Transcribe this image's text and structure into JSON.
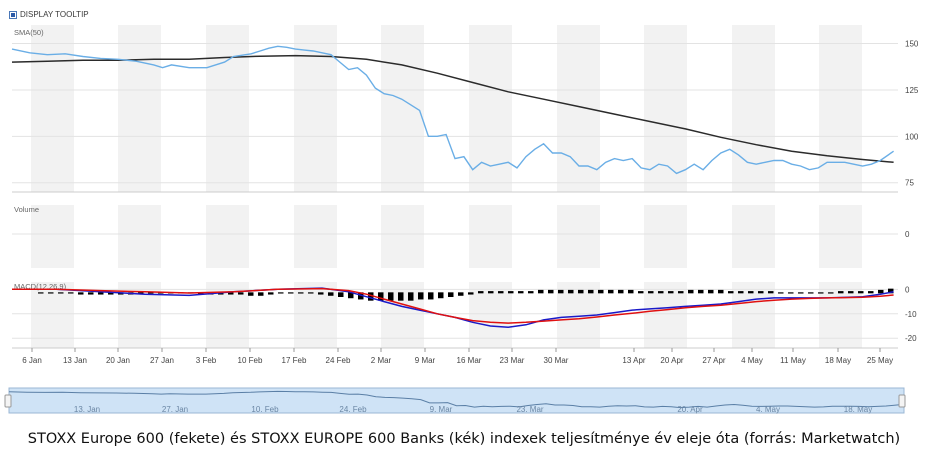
{
  "toolbar": {
    "tooltip_label": "DISPLAY TOOLTIP"
  },
  "caption": "STOXX Europe 600 (fekete) és STOXX EUROPE 600 Banks (kék) indexek teljesítménye év eleje óta (forrás: Marketwatch)",
  "colors": {
    "stoxx600": "#2b2b2b",
    "banks": "#6aaee6",
    "macd": "#1a1ac8",
    "signal": "#e01010",
    "histogram": "#000000",
    "band": "#f2f2f2",
    "navigator_fill": "#cfe3f6"
  },
  "chart_data": {
    "type": "line",
    "x_ticks": [
      "6 Jan",
      "13 Jan",
      "20 Jan",
      "27 Jan",
      "3 Feb",
      "10 Feb",
      "17 Feb",
      "24 Feb",
      "2 Mar",
      "9 Mar",
      "16 Mar",
      "23 Mar",
      "30 Mar",
      "13 Apr",
      "20 Apr",
      "27 Apr",
      "4 May",
      "11 May",
      "18 May",
      "25 May"
    ],
    "main": {
      "label": "SMA(50)",
      "yticks": [
        75,
        100,
        125,
        150
      ],
      "ylim": [
        70,
        160
      ],
      "series": [
        {
          "key": "stoxx600",
          "points": [
            [
              0,
              140
            ],
            [
              4,
              140.5
            ],
            [
              8,
              141
            ],
            [
              12,
              141
            ],
            [
              16,
              141.5
            ],
            [
              20,
              141.5
            ],
            [
              24,
              142.5
            ],
            [
              28,
              143.2
            ],
            [
              32,
              143.5
            ],
            [
              36,
              143
            ],
            [
              40,
              141.5
            ],
            [
              44,
              138.5
            ],
            [
              48,
              134
            ],
            [
              52,
              129
            ],
            [
              56,
              124
            ],
            [
              60,
              120
            ],
            [
              64,
              116
            ],
            [
              68,
              112
            ],
            [
              72,
              108
            ],
            [
              76,
              104
            ],
            [
              80,
              99.5
            ],
            [
              84,
              95.5
            ],
            [
              88,
              92
            ],
            [
              92,
              89.5
            ],
            [
              96,
              87.5
            ],
            [
              99.5,
              86
            ]
          ]
        },
        {
          "key": "banks",
          "points": [
            [
              0,
              147
            ],
            [
              2,
              145
            ],
            [
              4,
              144
            ],
            [
              6,
              144.5
            ],
            [
              8,
              143
            ],
            [
              10,
              142
            ],
            [
              12,
              141.5
            ],
            [
              14,
              140.5
            ],
            [
              16,
              138.5
            ],
            [
              17,
              137
            ],
            [
              18,
              138.5
            ],
            [
              20,
              137
            ],
            [
              22,
              137
            ],
            [
              24,
              140
            ],
            [
              25,
              143
            ],
            [
              27,
              144.5
            ],
            [
              28,
              146
            ],
            [
              29,
              147.5
            ],
            [
              30,
              148.5
            ],
            [
              31,
              148
            ],
            [
              32,
              147
            ],
            [
              33,
              146.5
            ],
            [
              34,
              146
            ],
            [
              35,
              145
            ],
            [
              36,
              144
            ],
            [
              37,
              140
            ],
            [
              38,
              136
            ],
            [
              39,
              137
            ],
            [
              40,
              133
            ],
            [
              41,
              126
            ],
            [
              42,
              123
            ],
            [
              43,
              122
            ],
            [
              44,
              120
            ],
            [
              45,
              117
            ],
            [
              46,
              114
            ],
            [
              47,
              100
            ],
            [
              48,
              100
            ],
            [
              49,
              101
            ],
            [
              50,
              88
            ],
            [
              51,
              89
            ],
            [
              52,
              82
            ],
            [
              53,
              86
            ],
            [
              54,
              84
            ],
            [
              55,
              85
            ],
            [
              56,
              86
            ],
            [
              57,
              83
            ],
            [
              58,
              89
            ],
            [
              59,
              93
            ],
            [
              60,
              96
            ],
            [
              61,
              91
            ],
            [
              62,
              91
            ],
            [
              63,
              89
            ],
            [
              64,
              84
            ],
            [
              65,
              84
            ],
            [
              66,
              82
            ],
            [
              67,
              86
            ],
            [
              68,
              88
            ],
            [
              69,
              87
            ],
            [
              70,
              88
            ],
            [
              71,
              83
            ],
            [
              72,
              82
            ],
            [
              73,
              85
            ],
            [
              74,
              84
            ],
            [
              75,
              80
            ],
            [
              76,
              82
            ],
            [
              77,
              85
            ],
            [
              78,
              82
            ],
            [
              79,
              87
            ],
            [
              80,
              91
            ],
            [
              81,
              93
            ],
            [
              82,
              90
            ],
            [
              83,
              86
            ],
            [
              84,
              85
            ],
            [
              85,
              86
            ],
            [
              86,
              87
            ],
            [
              87,
              87
            ],
            [
              88,
              85
            ],
            [
              89,
              84
            ],
            [
              90,
              82
            ],
            [
              91,
              83
            ],
            [
              92,
              86
            ],
            [
              93,
              86
            ],
            [
              94,
              86
            ],
            [
              95,
              85
            ],
            [
              96,
              84
            ],
            [
              97,
              85
            ],
            [
              98,
              87
            ],
            [
              99.5,
              92
            ]
          ]
        }
      ]
    },
    "volume": {
      "label": "Volume",
      "yticks": [
        0
      ]
    },
    "macd": {
      "label": "MACD(12,26,9)",
      "yticks": [
        0,
        -10,
        -20
      ],
      "ylim": [
        -24,
        3
      ],
      "series": [
        {
          "key": "macd",
          "points": [
            [
              0,
              0
            ],
            [
              5,
              0
            ],
            [
              10,
              -1
            ],
            [
              15,
              -2
            ],
            [
              20,
              -2.5
            ],
            [
              25,
              -1
            ],
            [
              30,
              0
            ],
            [
              35,
              0.5
            ],
            [
              38,
              -1
            ],
            [
              40,
              -3
            ],
            [
              42,
              -5
            ],
            [
              44,
              -7
            ],
            [
              46,
              -8.5
            ],
            [
              48,
              -10
            ],
            [
              50,
              -11.5
            ],
            [
              52,
              -13.5
            ],
            [
              54,
              -15
            ],
            [
              56,
              -15.5
            ],
            [
              58,
              -14.5
            ],
            [
              60,
              -12.5
            ],
            [
              62,
              -11.5
            ],
            [
              64,
              -11
            ],
            [
              66,
              -10.5
            ],
            [
              68,
              -9.5
            ],
            [
              70,
              -8.5
            ],
            [
              72,
              -8
            ],
            [
              74,
              -7.5
            ],
            [
              76,
              -7
            ],
            [
              78,
              -6.5
            ],
            [
              80,
              -6
            ],
            [
              82,
              -5
            ],
            [
              84,
              -4
            ],
            [
              86,
              -3.5
            ],
            [
              88,
              -3.5
            ],
            [
              90,
              -3.5
            ],
            [
              92,
              -3.5
            ],
            [
              94,
              -3.3
            ],
            [
              96,
              -3
            ],
            [
              98,
              -2
            ],
            [
              99.5,
              -1
            ]
          ]
        },
        {
          "key": "signal",
          "points": [
            [
              0,
              0
            ],
            [
              5,
              0
            ],
            [
              10,
              -0.5
            ],
            [
              15,
              -1
            ],
            [
              20,
              -1.5
            ],
            [
              25,
              -1
            ],
            [
              30,
              0
            ],
            [
              35,
              0.3
            ],
            [
              38,
              -0.5
            ],
            [
              40,
              -2
            ],
            [
              42,
              -4
            ],
            [
              44,
              -6
            ],
            [
              46,
              -8
            ],
            [
              48,
              -10
            ],
            [
              50,
              -11.5
            ],
            [
              52,
              -12.8
            ],
            [
              54,
              -13.5
            ],
            [
              56,
              -13.8
            ],
            [
              58,
              -13.5
            ],
            [
              60,
              -13
            ],
            [
              62,
              -12.5
            ],
            [
              64,
              -12
            ],
            [
              66,
              -11.3
            ],
            [
              68,
              -10.5
            ],
            [
              70,
              -9.8
            ],
            [
              72,
              -9
            ],
            [
              74,
              -8.3
            ],
            [
              76,
              -7.5
            ],
            [
              78,
              -7
            ],
            [
              80,
              -6.5
            ],
            [
              82,
              -5.8
            ],
            [
              84,
              -5
            ],
            [
              86,
              -4.5
            ],
            [
              88,
              -4
            ],
            [
              90,
              -3.7
            ],
            [
              92,
              -3.5
            ],
            [
              94,
              -3.4
            ],
            [
              96,
              -3.2
            ],
            [
              98,
              -2.8
            ],
            [
              99.5,
              -2.3
            ]
          ]
        }
      ],
      "histogram": [
        0,
        0,
        0,
        0,
        -0.5,
        -0.5,
        -0.5,
        -0.5,
        -0.5,
        -0.5,
        0,
        0,
        0,
        0,
        0,
        0,
        -0.5,
        -0.5,
        -0.5,
        -0.5,
        -0.5,
        -1,
        -1,
        -0.5,
        0,
        0,
        0,
        0,
        -0.5,
        -1,
        -1.5,
        -2,
        -2.5,
        -3,
        -3,
        -3,
        -3,
        -3,
        -2.5,
        -2.5,
        -2,
        -1.5,
        -1,
        -0.5,
        0.5,
        0.5,
        0.5,
        0.5,
        0.5,
        0.5,
        1,
        1,
        1,
        1,
        1,
        1,
        1,
        1,
        1,
        1,
        0.5,
        0.5,
        0.5,
        0.5,
        0.5,
        1,
        1,
        1,
        1,
        0.5,
        0.5,
        0.5,
        0.5,
        0.5,
        0,
        0,
        0,
        0,
        0,
        0,
        0.5,
        0.5,
        0.5,
        0.5,
        1,
        1.5
      ]
    },
    "navigator": {
      "ticks": [
        "13. Jan",
        "27. Jan",
        "10. Feb",
        "24. Feb",
        "9. Mar",
        "23. Mar",
        "20. Apr",
        "4. May",
        "18. May"
      ]
    }
  }
}
